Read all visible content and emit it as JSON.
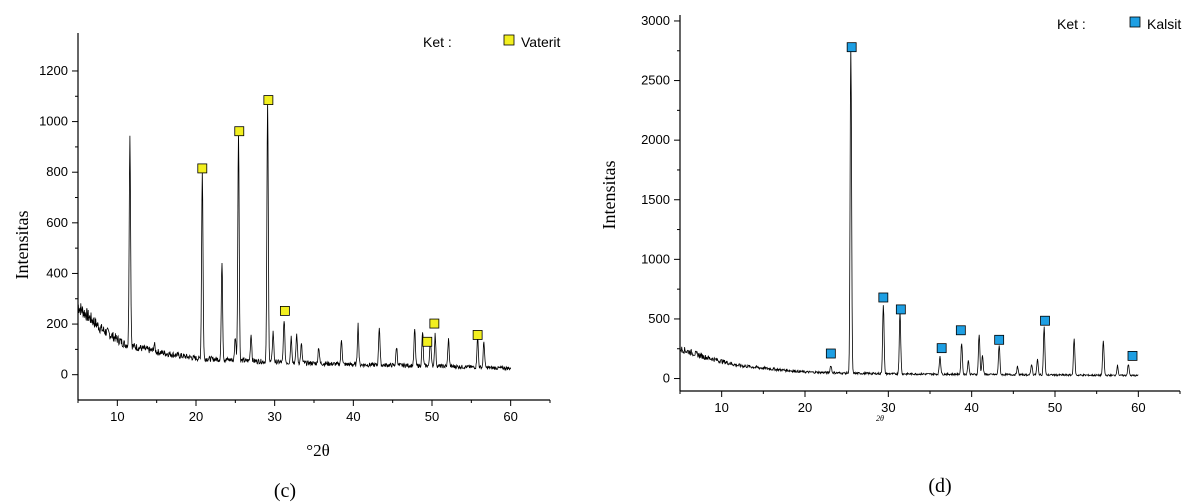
{
  "chart_data": [
    {
      "type": "line",
      "panel_label": "(c)",
      "ylabel": "Intensitas",
      "xlabel": "°2θ",
      "xlim": [
        5,
        65
      ],
      "ylim": [
        -100,
        1350
      ],
      "xticks": [
        10,
        20,
        30,
        40,
        50,
        60
      ],
      "yticks": [
        0,
        200,
        400,
        600,
        800,
        1000,
        1200
      ],
      "legend": {
        "prefix": "Ket :",
        "name": "Vaterit",
        "color": "#f2ef1f",
        "placement": "top-right"
      },
      "grid": false,
      "baseline": {
        "x": [
          5,
          8,
          11,
          15,
          20,
          30,
          40,
          50,
          60
        ],
        "y": [
          270,
          180,
          120,
          90,
          65,
          50,
          40,
          35,
          25
        ]
      },
      "peaks": [
        {
          "x": 11.6,
          "y": 940
        },
        {
          "x": 14.7,
          "y": 120
        },
        {
          "x": 20.8,
          "y": 810
        },
        {
          "x": 23.3,
          "y": 450
        },
        {
          "x": 25.0,
          "y": 150
        },
        {
          "x": 25.4,
          "y": 960
        },
        {
          "x": 27.0,
          "y": 160
        },
        {
          "x": 29.1,
          "y": 1080
        },
        {
          "x": 29.8,
          "y": 170
        },
        {
          "x": 31.2,
          "y": 220
        },
        {
          "x": 32.1,
          "y": 150
        },
        {
          "x": 32.8,
          "y": 160
        },
        {
          "x": 33.4,
          "y": 120
        },
        {
          "x": 35.6,
          "y": 110
        },
        {
          "x": 38.5,
          "y": 140
        },
        {
          "x": 40.6,
          "y": 200
        },
        {
          "x": 43.3,
          "y": 190
        },
        {
          "x": 45.5,
          "y": 110
        },
        {
          "x": 47.8,
          "y": 180
        },
        {
          "x": 48.8,
          "y": 170
        },
        {
          "x": 49.8,
          "y": 150
        },
        {
          "x": 50.4,
          "y": 160
        },
        {
          "x": 52.1,
          "y": 140
        },
        {
          "x": 55.8,
          "y": 150
        },
        {
          "x": 56.6,
          "y": 130
        }
      ],
      "markers": [
        {
          "x": 20.8,
          "y": 815
        },
        {
          "x": 25.5,
          "y": 962
        },
        {
          "x": 29.2,
          "y": 1085
        },
        {
          "x": 31.3,
          "y": 252
        },
        {
          "x": 49.4,
          "y": 130
        },
        {
          "x": 50.3,
          "y": 202
        },
        {
          "x": 55.8,
          "y": 157
        }
      ]
    },
    {
      "type": "line",
      "panel_label": "(d)",
      "ylabel": "Intensitas",
      "xlabel": "2θ",
      "xlim": [
        5,
        65
      ],
      "ylim": [
        -180,
        3050
      ],
      "xticks": [
        10,
        20,
        30,
        40,
        50,
        60
      ],
      "yticks": [
        0,
        500,
        1000,
        1500,
        2000,
        2500,
        3000
      ],
      "legend": {
        "prefix": "Ket :",
        "name": "Kalsit",
        "color": "#1e9fe3",
        "placement": "top-right"
      },
      "grid": false,
      "baseline": {
        "x": [
          5,
          8,
          12,
          16,
          20,
          25,
          30,
          40,
          50,
          60
        ],
        "y": [
          250,
          180,
          110,
          80,
          55,
          45,
          40,
          35,
          30,
          25
        ]
      },
      "peaks": [
        {
          "x": 23.1,
          "y": 110
        },
        {
          "x": 25.5,
          "y": 2780
        },
        {
          "x": 29.4,
          "y": 620
        },
        {
          "x": 31.4,
          "y": 560
        },
        {
          "x": 36.2,
          "y": 190
        },
        {
          "x": 38.8,
          "y": 300
        },
        {
          "x": 39.6,
          "y": 150
        },
        {
          "x": 40.9,
          "y": 370
        },
        {
          "x": 41.3,
          "y": 200
        },
        {
          "x": 43.3,
          "y": 280
        },
        {
          "x": 45.5,
          "y": 100
        },
        {
          "x": 47.2,
          "y": 120
        },
        {
          "x": 47.9,
          "y": 160
        },
        {
          "x": 48.7,
          "y": 430
        },
        {
          "x": 52.3,
          "y": 330
        },
        {
          "x": 55.8,
          "y": 320
        },
        {
          "x": 57.5,
          "y": 110
        },
        {
          "x": 58.8,
          "y": 120
        }
      ],
      "markers": [
        {
          "x": 23.1,
          "y": 210
        },
        {
          "x": 25.6,
          "y": 2780
        },
        {
          "x": 29.4,
          "y": 680
        },
        {
          "x": 31.5,
          "y": 580
        },
        {
          "x": 36.4,
          "y": 255
        },
        {
          "x": 38.7,
          "y": 405
        },
        {
          "x": 43.3,
          "y": 325
        },
        {
          "x": 48.8,
          "y": 485
        },
        {
          "x": 59.3,
          "y": 190
        }
      ]
    }
  ]
}
